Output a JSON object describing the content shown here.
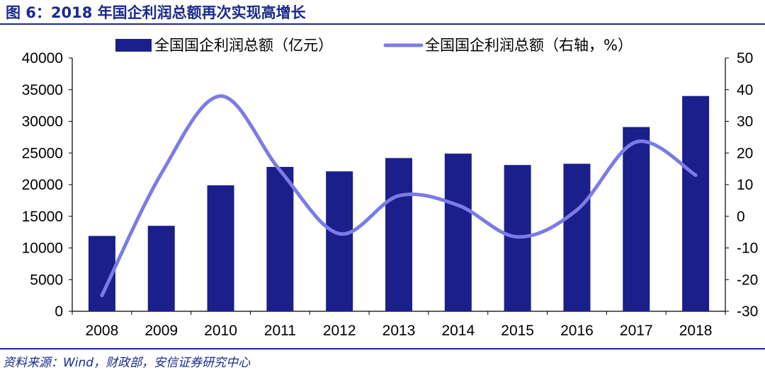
{
  "title": "图 6：2018 年国企利润总额再次实现高增长",
  "source": "资料来源：Wind，财政部，安信证券研究中心",
  "colors": {
    "bar": "#1a1f8c",
    "line": "#7b7be8",
    "brand": "#1a2a8c"
  },
  "chart_data": {
    "type": "bar+line",
    "categories": [
      "2008",
      "2009",
      "2010",
      "2011",
      "2012",
      "2013",
      "2014",
      "2015",
      "2016",
      "2017",
      "2018"
    ],
    "series": [
      {
        "name": "全国国企利润总额（亿元）",
        "type": "bar",
        "axis": "left",
        "values": [
          11900,
          13500,
          19900,
          22800,
          22100,
          24200,
          24900,
          23100,
          23300,
          29100,
          34000
        ]
      },
      {
        "name": "全国国企利润总额（右轴，%）",
        "type": "line",
        "axis": "right",
        "values": [
          -25,
          13.5,
          38,
          14.5,
          -5.5,
          6.5,
          3.5,
          -6.5,
          2,
          23.5,
          13
        ]
      }
    ],
    "left_axis": {
      "min": 0,
      "max": 40000,
      "step": 5000,
      "ticks": [
        "0",
        "5000",
        "10000",
        "15000",
        "20000",
        "25000",
        "30000",
        "35000",
        "40000"
      ]
    },
    "right_axis": {
      "min": -30,
      "max": 50,
      "step": 10,
      "ticks": [
        "-30",
        "-20",
        "-10",
        "0",
        "10",
        "20",
        "30",
        "40",
        "50"
      ]
    },
    "legend": "top",
    "grid": false
  }
}
